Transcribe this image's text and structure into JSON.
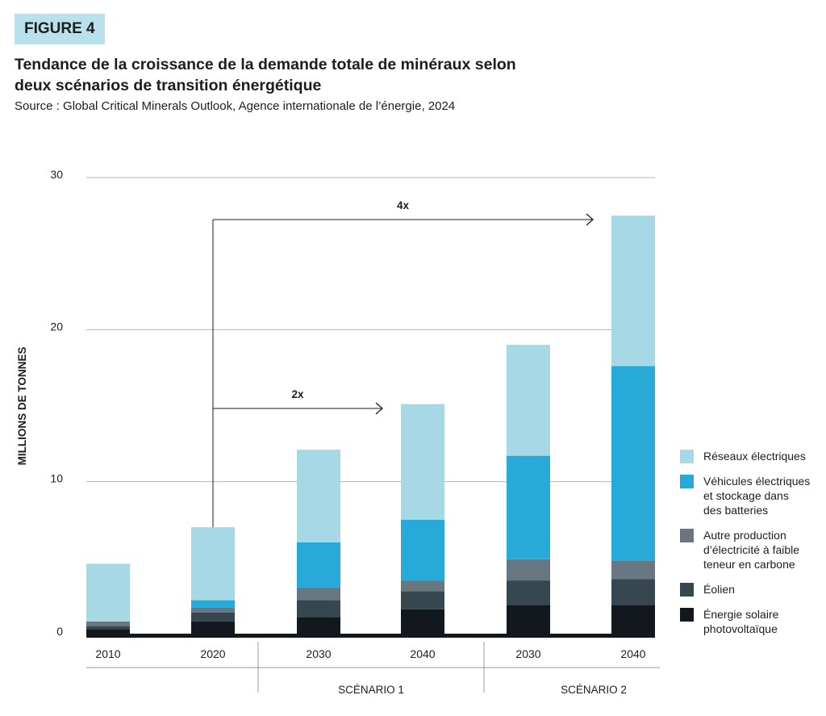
{
  "figure_label": "FIGURE 4",
  "title_line1": "Tendance de la croissance de la demande totale de minéraux selon",
  "title_line2": "deux scénarios de transition énergétique",
  "source": "Source : Global Critical Minerals Outlook, Agence internationale de l’énergie, 2024",
  "chart_data": {
    "type": "bar",
    "stacked": true,
    "ylabel": "MILLIONS DE TONNES",
    "ylim": [
      0,
      30
    ],
    "yticks": [
      "0",
      "10",
      "20",
      "30"
    ],
    "grid": true,
    "legend_position": "right",
    "categories": [
      "2010",
      "2020",
      "2030",
      "2040",
      "2030",
      "2040"
    ],
    "groups": [
      {
        "label": "",
        "categories": [
          "2010",
          "2020"
        ]
      },
      {
        "label": "SCÉNARIO 1",
        "categories": [
          "2030",
          "2040"
        ]
      },
      {
        "label": "SCÉNARIO 2",
        "categories": [
          "2030",
          "2040"
        ]
      }
    ],
    "series": [
      {
        "name": "Énergie solaire\nphotovoltaïque",
        "color": "#12181e",
        "values": [
          0.3,
          0.8,
          1.1,
          1.6,
          1.9,
          1.9
        ]
      },
      {
        "name": "Éolien",
        "color": "#37474f",
        "values": [
          0.2,
          0.6,
          1.1,
          1.2,
          1.6,
          1.7
        ]
      },
      {
        "name": "Autre production\nd’électricité à faible\nteneur en carbone",
        "color": "#697783",
        "values": [
          0.3,
          0.3,
          0.8,
          0.7,
          1.4,
          1.2
        ]
      },
      {
        "name": "Véhicules électriques\net stockage dans\ndes batteries",
        "color": "#28aad9",
        "values": [
          0.0,
          0.5,
          3.0,
          4.0,
          6.8,
          12.8
        ]
      },
      {
        "name": "Réseaux électriques",
        "color": "#a6d8e5",
        "values": [
          3.8,
          4.8,
          6.1,
          7.6,
          7.3,
          9.9
        ]
      }
    ],
    "annotations": [
      {
        "text": "2x",
        "from_category": 1,
        "to_category": 3
      },
      {
        "text": "4x",
        "from_category": 1,
        "to_category": 5
      }
    ],
    "background_color": "#ffffff",
    "grid_color": "#b4b4b4",
    "text_color": "#1d1d1b"
  }
}
